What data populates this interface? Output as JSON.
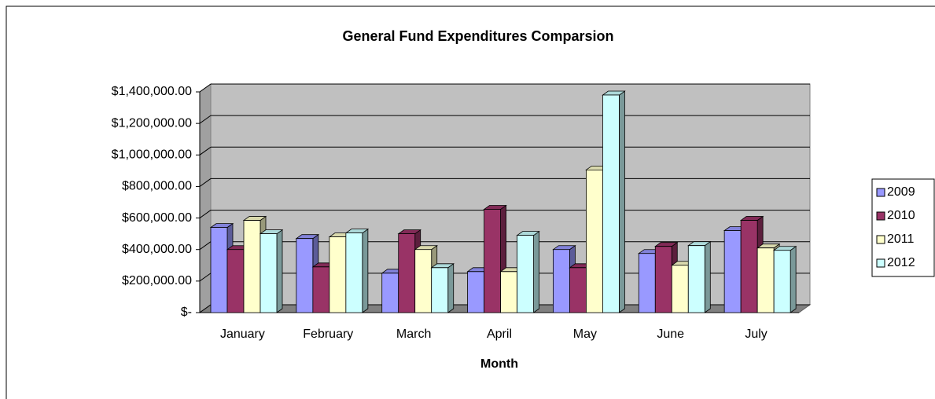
{
  "chart_data": {
    "type": "bar",
    "title": "General Fund Expenditures Comparsion",
    "x_label": "Month",
    "categories": [
      "January",
      "February",
      "March",
      "April",
      "May",
      "June",
      "July"
    ],
    "series": [
      {
        "name": "2009",
        "color": "#9999ff",
        "values": [
          540000,
          470000,
          250000,
          260000,
          400000,
          375000,
          520000
        ]
      },
      {
        "name": "2010",
        "color": "#993366",
        "values": [
          400000,
          290000,
          500000,
          655000,
          285000,
          420000,
          585000
        ]
      },
      {
        "name": "2011",
        "color": "#ffffcc",
        "values": [
          585000,
          480000,
          400000,
          260000,
          905000,
          300000,
          410000
        ]
      },
      {
        "name": "2012",
        "color": "#ccffff",
        "values": [
          500000,
          505000,
          285000,
          490000,
          1380000,
          425000,
          395000
        ]
      }
    ],
    "ylim": [
      0,
      1400000
    ],
    "yticks": [
      {
        "value": 0,
        "label": "$-"
      },
      {
        "value": 200000,
        "label": "$200,000.00"
      },
      {
        "value": 400000,
        "label": "$400,000.00"
      },
      {
        "value": 600000,
        "label": "$600,000.00"
      },
      {
        "value": 800000,
        "label": "$800,000.00"
      },
      {
        "value": 1000000,
        "label": "$1,000,000.00"
      },
      {
        "value": 1200000,
        "label": "$1,200,000.00"
      },
      {
        "value": 1400000,
        "label": "$1,400,000.00"
      }
    ],
    "grid": true,
    "legend": "right"
  }
}
